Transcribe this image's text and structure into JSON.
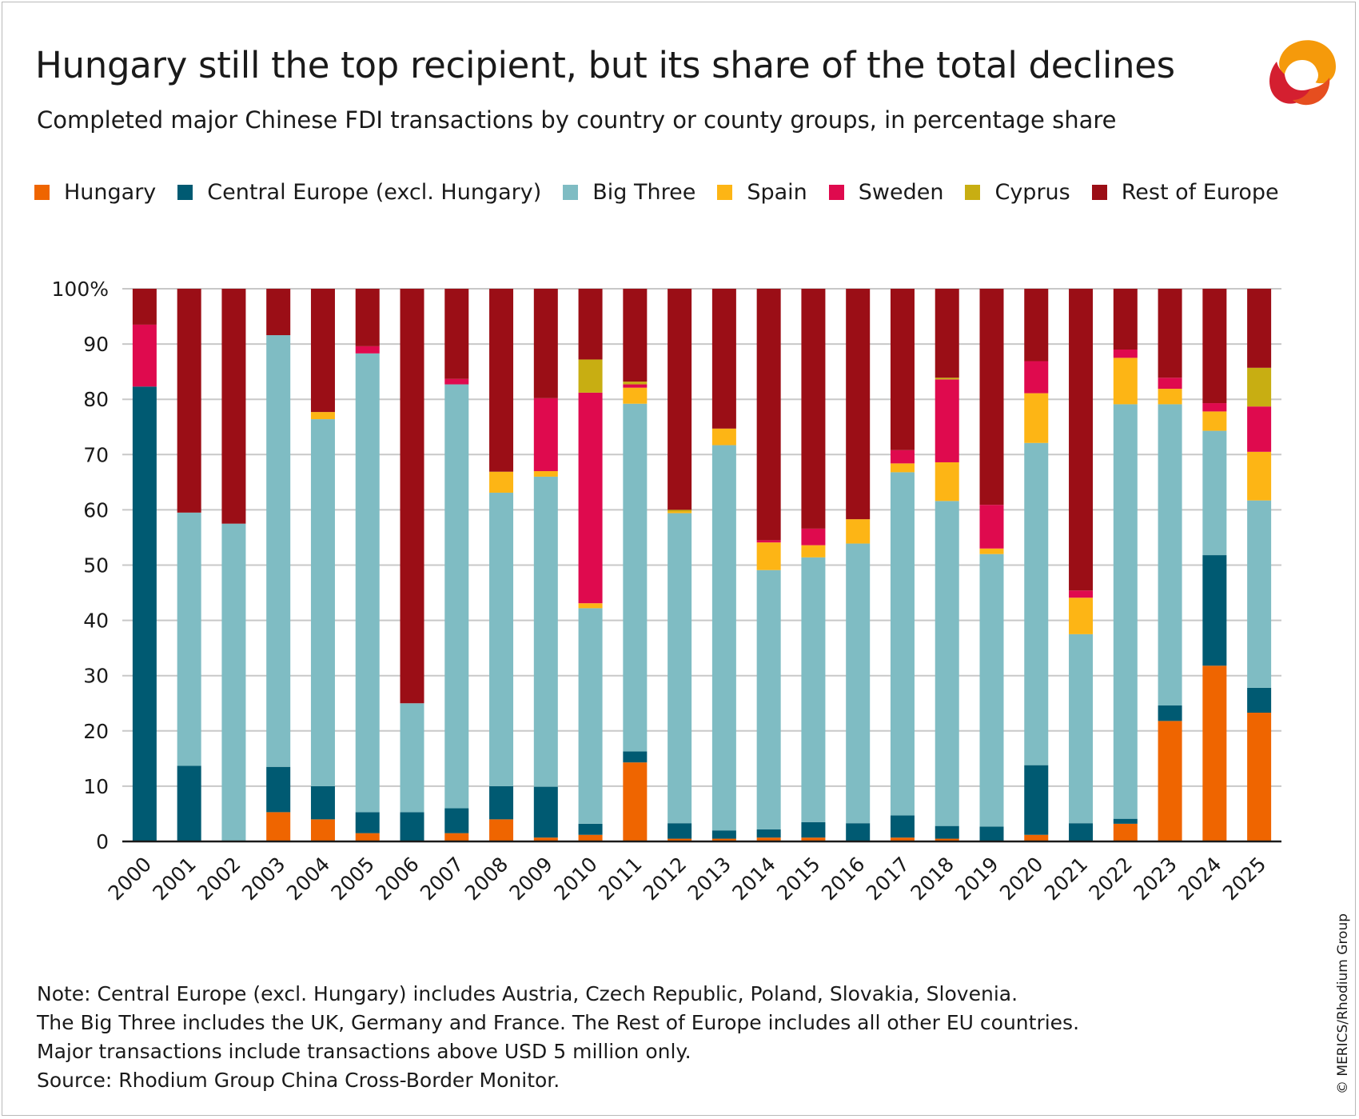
{
  "header": {
    "title": "Hungary still the top recipient, but its share of the total declines",
    "subtitle": "Completed major Chinese FDI transactions by country or county groups, in percentage share"
  },
  "legend": [
    {
      "label": "Hungary",
      "color": "#ef6500"
    },
    {
      "label": "Central Europe (excl. Hungary)",
      "color": "#005a72"
    },
    {
      "label": "Big Three",
      "color": "#7fbcc3"
    },
    {
      "label": "Spain",
      "color": "#fdb515"
    },
    {
      "label": "Sweden",
      "color": "#df0a4e"
    },
    {
      "label": "Cyprus",
      "color": "#c8ae12"
    },
    {
      "label": "Rest of Europe",
      "color": "#9b0e16"
    }
  ],
  "chart_data": {
    "type": "bar",
    "stacked": true,
    "categories": [
      "2000",
      "2001",
      "2002",
      "2003",
      "2004",
      "2005",
      "2006",
      "2007",
      "2008",
      "2009",
      "2010",
      "2011",
      "2012",
      "2013",
      "2014",
      "2015",
      "2016",
      "2017",
      "2018",
      "2019",
      "2020",
      "2021",
      "2022",
      "2023",
      "2024",
      "2025"
    ],
    "y_ticks": [
      "0",
      "10",
      "20",
      "30",
      "40",
      "50",
      "60",
      "70",
      "80",
      "90",
      "100%"
    ],
    "ylim": [
      0,
      100
    ],
    "grid": true,
    "legend_position": "top",
    "series": [
      {
        "name": "Hungary",
        "color": "#ef6500",
        "values": [
          0,
          0,
          0,
          5.3,
          4,
          1.5,
          0,
          1.5,
          4,
          0.7,
          1.2,
          14.3,
          0.5,
          0.5,
          0.7,
          0.7,
          0,
          0.7,
          0.5,
          0,
          1.2,
          0,
          3.2,
          21.8,
          31.8,
          23.3
        ]
      },
      {
        "name": "Central Europe (excl. Hungary)",
        "color": "#005a72",
        "values": [
          82.3,
          13.7,
          0,
          8.2,
          6,
          3.8,
          5.3,
          4.5,
          6,
          9.2,
          2,
          2,
          2.8,
          1.5,
          1.5,
          2.8,
          3.3,
          4,
          2.3,
          2.7,
          12.6,
          3.3,
          0.9,
          2.8,
          20,
          4.5
        ]
      },
      {
        "name": "Big Three",
        "color": "#7fbcc3",
        "values": [
          0,
          45.8,
          57.5,
          78.1,
          66.4,
          83,
          19.7,
          76.7,
          53.1,
          56.1,
          39,
          62.9,
          56.1,
          69.7,
          46.9,
          47.9,
          50.6,
          62.1,
          58.8,
          49.3,
          58.3,
          34.2,
          75,
          54.5,
          22.5,
          33.9
        ]
      },
      {
        "name": "Spain",
        "color": "#fdb515",
        "values": [
          0,
          0,
          0,
          0,
          1.3,
          0,
          0,
          0,
          3.8,
          1,
          0.9,
          2.9,
          0.3,
          3,
          5,
          2.2,
          4.4,
          1.6,
          7,
          1,
          9,
          6.6,
          8.4,
          2.8,
          3.5,
          8.8
        ]
      },
      {
        "name": "Sweden",
        "color": "#df0a4e",
        "values": [
          11.2,
          0,
          0,
          0,
          0,
          1.3,
          0,
          1,
          0,
          13.2,
          38.1,
          0.6,
          0,
          0,
          0.4,
          3,
          0,
          2.4,
          15,
          7.9,
          5.8,
          1.3,
          1.5,
          2,
          1.5,
          8.2
        ]
      },
      {
        "name": "Cyprus",
        "color": "#c8ae12",
        "values": [
          0,
          0,
          0,
          0,
          0,
          0,
          0,
          0,
          0,
          0,
          6,
          0.5,
          0.3,
          0,
          0,
          0,
          0,
          0,
          0.3,
          0,
          0,
          0,
          0,
          0,
          0,
          7
        ]
      },
      {
        "name": "Rest of Europe",
        "color": "#9b0e16",
        "values": [
          6.5,
          40.5,
          42.5,
          8.4,
          22.3,
          10.4,
          75,
          16.3,
          33.1,
          19.8,
          12.8,
          16.8,
          40,
          25.3,
          45.5,
          43.4,
          41.7,
          29.2,
          16.1,
          39.1,
          13.1,
          54.6,
          11,
          16.1,
          20.7,
          14.3
        ]
      }
    ]
  },
  "notes": [
    "Note: Central Europe (excl. Hungary) includes Austria, Czech Republic, Poland, Slovakia, Slovenia.",
    "The Big Three includes the UK, Germany and France. The Rest of Europe includes all other EU countries.",
    "Major transactions include transactions above USD 5 million only.",
    "Source: Rhodium Group China Cross-Border Monitor."
  ],
  "copyright": "© MERICS/Rhodium Group",
  "logo_icon": "merics-logo-icon"
}
